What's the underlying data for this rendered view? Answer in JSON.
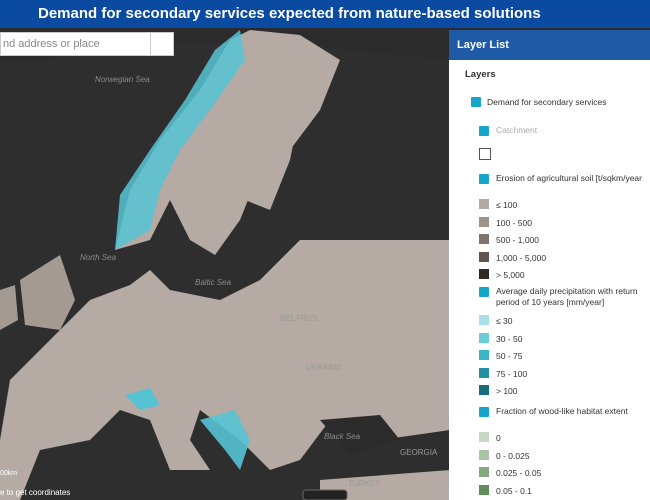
{
  "header": {
    "title": "Demand for secondary services expected from nature-based solutions"
  },
  "search": {
    "placeholder": "nd address or place"
  },
  "map": {
    "labels": [
      "Norwegian Sea",
      "North Sea",
      "Baltic Sea",
      "BELARUS",
      "UKRAINE",
      "Black Sea",
      "GEORGIA",
      "TURKEY"
    ],
    "scale": "00km",
    "coords": "e to get coordinates"
  },
  "panel": {
    "title": "Layer List",
    "heading": "Layers",
    "group": "Demand for secondary services",
    "layers": [
      {
        "name": "Catchment",
        "items": []
      },
      {
        "name": "Erosion of agricultural soil [t/sqkm/year",
        "items": [
          "≤ 100",
          "100 - 500",
          "500 - 1,000",
          "1,000 - 5,000",
          "> 5,000"
        ]
      },
      {
        "name": "Average daily precipitation with return period of 10 years [mm/year]",
        "items": [
          "≤ 30",
          "30 - 50",
          "50 - 75",
          "75 - 100",
          "> 100"
        ]
      },
      {
        "name": "Fraction of wood-like habitat extent",
        "items": [
          "0",
          "0 - 0.025",
          "0.025 - 0.05",
          "0.05 - 0.1"
        ]
      }
    ]
  }
}
